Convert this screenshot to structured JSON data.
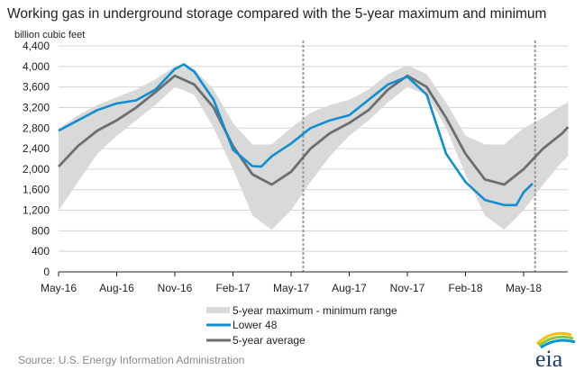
{
  "chart_data": {
    "type": "line",
    "title": "Working gas in underground storage compared with the 5-year maximum and minimum",
    "ylabel": "billion cubic feet",
    "xlabel": "",
    "ylim": [
      0,
      4400
    ],
    "y_ticks": [
      0,
      400,
      800,
      1200,
      1600,
      2000,
      2400,
      2800,
      3200,
      3600,
      4000,
      4400
    ],
    "y_tick_labels": [
      "0",
      "400",
      "800",
      "1,200",
      "1,600",
      "2,000",
      "2,400",
      "2,800",
      "3,200",
      "3,600",
      "4,000",
      "4,400"
    ],
    "x_ticks": [
      "2016-05-01",
      "2016-08-01",
      "2016-11-01",
      "2017-02-01",
      "2017-05-01",
      "2017-08-01",
      "2017-11-01",
      "2018-02-01",
      "2018-05-01"
    ],
    "x_tick_labels": [
      "May-16",
      "Aug-16",
      "Nov-16",
      "Feb-17",
      "May-17",
      "Aug-17",
      "Nov-17",
      "Feb-18",
      "May-18"
    ],
    "xlim": [
      "2016-05-01",
      "2018-07-10"
    ],
    "grid": "horizontal",
    "reference_lines": [
      "2017-05-20",
      "2018-05-19"
    ],
    "legend_position": "bottom-center",
    "band": {
      "name": "5-year maximum - minimum range",
      "color": "#d9d9d9",
      "x": [
        "2016-05-01",
        "2016-06-01",
        "2016-07-01",
        "2016-08-01",
        "2016-09-01",
        "2016-10-01",
        "2016-11-01",
        "2016-12-01",
        "2017-01-01",
        "2017-02-01",
        "2017-03-01",
        "2017-04-01",
        "2017-05-01",
        "2017-06-01",
        "2017-07-01",
        "2017-08-01",
        "2017-09-01",
        "2017-10-01",
        "2017-11-01",
        "2017-12-01",
        "2018-01-01",
        "2018-02-01",
        "2018-03-01",
        "2018-04-01",
        "2018-05-01",
        "2018-06-01",
        "2018-07-01",
        "2018-07-10"
      ],
      "max": [
        2780,
        3050,
        3250,
        3400,
        3550,
        3750,
        4000,
        3950,
        3550,
        2900,
        2480,
        2480,
        2800,
        3100,
        3250,
        3350,
        3550,
        3850,
        4020,
        3850,
        3300,
        2650,
        2480,
        2480,
        2800,
        3000,
        3250,
        3300
      ],
      "min": [
        1200,
        1750,
        2300,
        2650,
        2950,
        3250,
        3600,
        3450,
        2800,
        2000,
        1100,
        820,
        1200,
        1750,
        2250,
        2650,
        2950,
        3300,
        3600,
        3450,
        2800,
        1900,
        1100,
        820,
        1200,
        1700,
        2150,
        2250
      ]
    },
    "series": [
      {
        "name": "Lower 48",
        "color": "#0f8fd0",
        "x": [
          "2016-05-01",
          "2016-06-01",
          "2016-07-01",
          "2016-08-01",
          "2016-09-01",
          "2016-10-01",
          "2016-11-01",
          "2016-11-15",
          "2016-12-01",
          "2017-01-01",
          "2017-02-01",
          "2017-03-01",
          "2017-03-15",
          "2017-04-01",
          "2017-05-01",
          "2017-06-01",
          "2017-07-01",
          "2017-08-01",
          "2017-09-01",
          "2017-10-01",
          "2017-11-01",
          "2017-12-01",
          "2018-01-01",
          "2018-02-01",
          "2018-03-01",
          "2018-04-01",
          "2018-04-20",
          "2018-05-01",
          "2018-05-15"
        ],
        "values": [
          2750,
          2950,
          3150,
          3280,
          3340,
          3550,
          3950,
          4040,
          3900,
          3350,
          2380,
          2060,
          2050,
          2250,
          2500,
          2800,
          2950,
          3050,
          3350,
          3650,
          3800,
          3450,
          2300,
          1750,
          1400,
          1300,
          1300,
          1550,
          1720
        ]
      },
      {
        "name": "5-year average",
        "color": "#6d6e71",
        "x": [
          "2016-05-01",
          "2016-06-01",
          "2016-07-01",
          "2016-08-01",
          "2016-09-01",
          "2016-10-01",
          "2016-11-01",
          "2016-12-01",
          "2017-01-01",
          "2017-02-01",
          "2017-03-01",
          "2017-04-01",
          "2017-05-01",
          "2017-06-01",
          "2017-07-01",
          "2017-08-01",
          "2017-09-01",
          "2017-10-01",
          "2017-11-01",
          "2017-12-01",
          "2018-01-01",
          "2018-02-01",
          "2018-03-01",
          "2018-04-01",
          "2018-05-01",
          "2018-06-01",
          "2018-07-01",
          "2018-07-10"
        ],
        "values": [
          2050,
          2450,
          2750,
          2950,
          3200,
          3500,
          3820,
          3650,
          3200,
          2450,
          1900,
          1700,
          1950,
          2400,
          2700,
          2900,
          3150,
          3550,
          3820,
          3600,
          3000,
          2300,
          1800,
          1700,
          2000,
          2400,
          2700,
          2820
        ]
      }
    ]
  },
  "source": "Source:  U.S. Energy Information Administration",
  "logo_text": "eia"
}
